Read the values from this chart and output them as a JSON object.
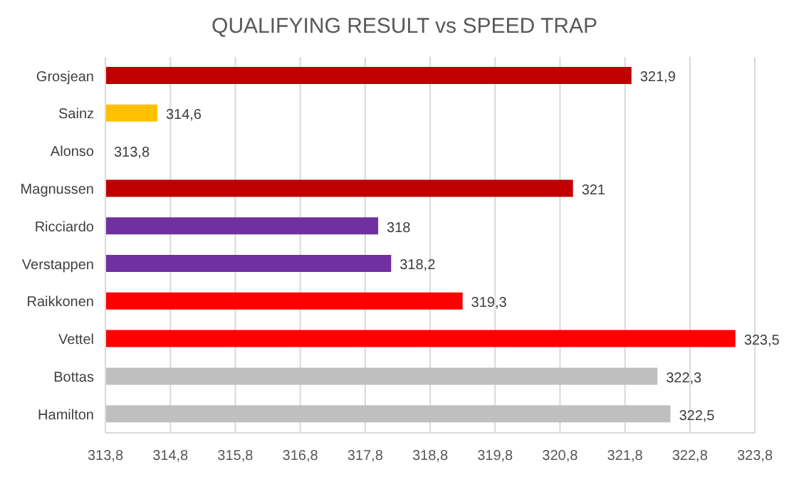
{
  "chart_data": {
    "type": "bar",
    "orientation": "horizontal",
    "title": "QUALIFYING RESULT vs SPEED TRAP",
    "categories": [
      "Grosjean",
      "Sainz",
      "Alonso",
      "Magnussen",
      "Ricciardo",
      "Verstappen",
      "Raikkonen",
      "Vettel",
      "Bottas",
      "Hamilton"
    ],
    "values": [
      321.9,
      314.6,
      313.8,
      321,
      318,
      318.2,
      319.3,
      323.5,
      322.3,
      322.5
    ],
    "colors": [
      "#c00000",
      "#ffc000",
      "#ffc000",
      "#c00000",
      "#7030a0",
      "#7030a0",
      "#ff0000",
      "#ff0000",
      "#bfbfbf",
      "#bfbfbf"
    ],
    "value_labels": [
      "321,9",
      "314,6",
      "313,8",
      "321",
      "318",
      "318,2",
      "319,3",
      "323,5",
      "322,3",
      "322,5"
    ],
    "xlim": [
      313.8,
      323.8
    ],
    "xticks": [
      {
        "value": 313.8,
        "label": "313,8"
      },
      {
        "value": 314.8,
        "label": "314,8"
      },
      {
        "value": 315.8,
        "label": "315,8"
      },
      {
        "value": 316.8,
        "label": "316,8"
      },
      {
        "value": 317.8,
        "label": "317,8"
      },
      {
        "value": 318.8,
        "label": "318,8"
      },
      {
        "value": 319.8,
        "label": "319,8"
      },
      {
        "value": 320.8,
        "label": "320,8"
      },
      {
        "value": 321.8,
        "label": "321,8"
      },
      {
        "value": 322.8,
        "label": "322,8"
      },
      {
        "value": 323.8,
        "label": "323,8"
      }
    ],
    "grid": "x"
  }
}
